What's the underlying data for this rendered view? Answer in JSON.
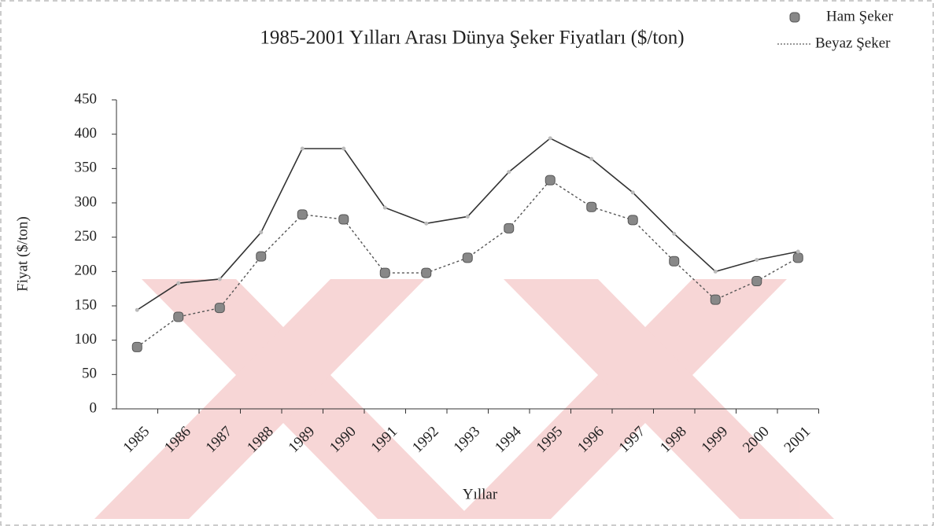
{
  "chart_data": {
    "type": "line",
    "title": "1985-2001 Yılları Arası Dünya Şeker Fiyatları ($/ton)",
    "x_label": "Yıllar",
    "y_label": "Fiyat ($/ton)",
    "categories": [
      "1985",
      "1986",
      "1987",
      "1988",
      "1989",
      "1990",
      "1991",
      "1992",
      "1993",
      "1994",
      "1995",
      "1996",
      "1997",
      "1998",
      "1999",
      "2000",
      "2001"
    ],
    "series": [
      {
        "name": "Ham Şeker",
        "color": "#555555",
        "values": [
          90,
          134,
          147,
          222,
          283,
          276,
          198,
          198,
          220,
          263,
          333,
          294,
          275,
          215,
          159,
          186,
          220
        ]
      },
      {
        "name": "Beyaz Şeker",
        "color": "#333333",
        "values": [
          144,
          183,
          189,
          257,
          379,
          379,
          293,
          270,
          280,
          345,
          394,
          364,
          315,
          255,
          200,
          217,
          229
        ]
      }
    ],
    "ylim": [
      0,
      450
    ],
    "yticks": [
      0,
      50,
      100,
      150,
      200,
      250,
      300,
      350,
      400,
      450
    ],
    "grid": false,
    "legend": "top-right"
  }
}
